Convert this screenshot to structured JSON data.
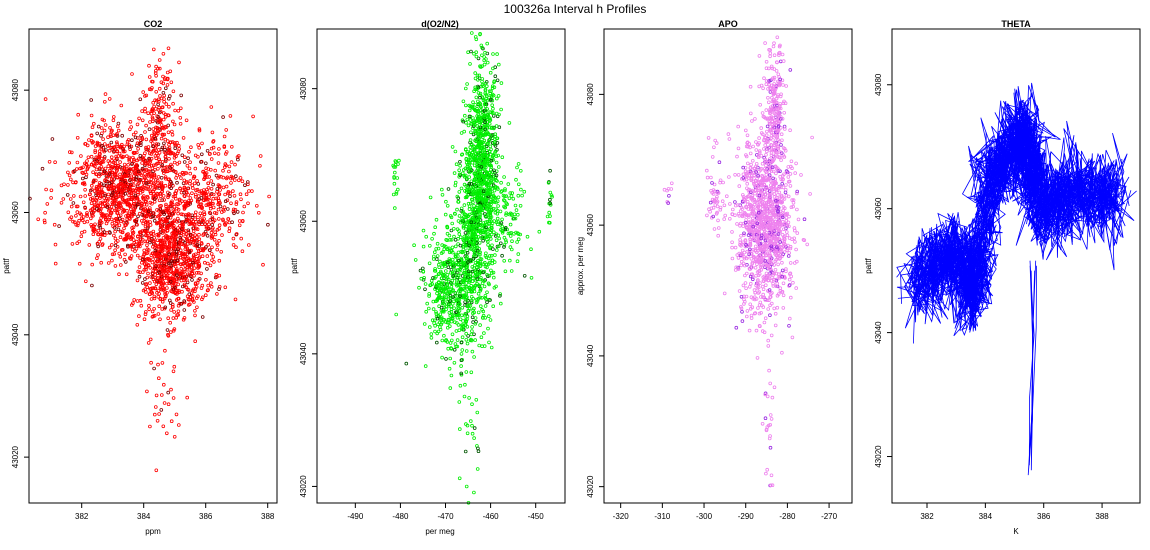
{
  "figure": {
    "title": "100326a   Interval h Profiles"
  },
  "chart_data": [
    {
      "type": "scatter",
      "title": "CO2",
      "xlabel": "ppm",
      "ylabel": "pattf",
      "xlim": [
        380.3,
        388.3
      ],
      "ylim": [
        43012.5,
        43090
      ],
      "xticks": [
        382,
        384,
        386,
        388
      ],
      "yticks": [
        43020,
        43040,
        43060,
        43080
      ],
      "series": [
        {
          "color": "#ff0000",
          "secondary_color": "#7a0000",
          "marker": "open-circle",
          "clusters": [
            {
              "cx": 383.2,
              "cy": 43064,
              "sx": 0.75,
              "sy": 5.5,
              "n": 900
            },
            {
              "cx": 384.9,
              "cy": 43052,
              "sx": 0.55,
              "sy": 4.5,
              "n": 750
            },
            {
              "cx": 384.5,
              "cy": 43072,
              "sx": 0.3,
              "sy": 7.5,
              "n": 260
            },
            {
              "cx": 385.9,
              "cy": 43062,
              "sx": 0.75,
              "sy": 5.5,
              "n": 420
            },
            {
              "cx": 384.1,
              "cy": 43060,
              "sx": 1.6,
              "sy": 4.5,
              "n": 220
            },
            {
              "cx": 384.6,
              "cy": 43030,
              "sx": 0.35,
              "sy": 8.0,
              "n": 40
            }
          ]
        }
      ],
      "panel_key": "co2"
    },
    {
      "type": "scatter",
      "title": "d(O2/N2)",
      "xlabel": "per meg",
      "ylabel": "pattf",
      "xlim": [
        -498.5,
        -443.5
      ],
      "ylim": [
        43017.5,
        43089
      ],
      "xticks": [
        -490,
        -480,
        -470,
        -460,
        -450
      ],
      "yticks": [
        43020,
        43040,
        43060,
        43080
      ],
      "series": [
        {
          "color": "#00ee00",
          "secondary_color": "#005500",
          "marker": "open-circle",
          "clusters": [
            {
              "cx": -462.5,
              "cy": 43064,
              "sx": 2.2,
              "sy": 6.5,
              "n": 900
            },
            {
              "cx": -467.5,
              "cy": 43050,
              "sx": 3.5,
              "sy": 5.0,
              "n": 650
            },
            {
              "cx": -461.5,
              "cy": 43076,
              "sx": 1.5,
              "sy": 6.5,
              "n": 250
            },
            {
              "cx": -464.5,
              "cy": 43028,
              "sx": 1.3,
              "sy": 6.0,
              "n": 30
            },
            {
              "cx": -455.5,
              "cy": 43060,
              "sx": 2.5,
              "sy": 3.5,
              "n": 90
            },
            {
              "cx": -481.0,
              "cy": 43066,
              "sx": 0.3,
              "sy": 2.5,
              "n": 18
            },
            {
              "cx": -447.0,
              "cy": 43062,
              "sx": 0.3,
              "sy": 2.5,
              "n": 15
            }
          ]
        }
      ],
      "panel_key": "o2n2"
    },
    {
      "type": "scatter",
      "title": "APO",
      "xlabel": "",
      "ylabel": "approx. per meg",
      "xlim": [
        -324,
        -264.5
      ],
      "ylim": [
        43017.5,
        43090
      ],
      "xticks": [
        -320,
        -310,
        -300,
        -290,
        -280,
        -270
      ],
      "yticks": [
        43020,
        43040,
        43060,
        43080
      ],
      "series": [
        {
          "color": "#ee82ee",
          "secondary_color": "#9a2be2",
          "marker": "open-circle",
          "clusters": [
            {
              "cx": -285.5,
              "cy": 43060,
              "sx": 3.3,
              "sy": 6.5,
              "n": 1200
            },
            {
              "cx": -283.0,
              "cy": 43077,
              "sx": 1.3,
              "sy": 5.5,
              "n": 240
            },
            {
              "cx": -284.5,
              "cy": 43028,
              "sx": 0.8,
              "sy": 6.0,
              "n": 30
            },
            {
              "cx": -297.5,
              "cy": 43065,
              "sx": 1.0,
              "sy": 3.5,
              "n": 50
            },
            {
              "cx": -308.5,
              "cy": 43066,
              "sx": 0.5,
              "sy": 1.5,
              "n": 8
            }
          ]
        }
      ],
      "panel_key": "apo"
    },
    {
      "type": "line",
      "title": "THETA",
      "xlabel": "K",
      "ylabel": "pattf",
      "xlim": [
        380.8,
        389.3
      ],
      "ylim": [
        43012.5,
        43089
      ],
      "xticks": [
        382,
        384,
        386,
        388
      ],
      "yticks": [
        43020,
        43040,
        43060,
        43080
      ],
      "series": [
        {
          "color": "#0000ff",
          "trace_count": 18,
          "profile": [
            [
              381.6,
              43048
            ],
            [
              382.4,
              43051
            ],
            [
              383.0,
              43053
            ],
            [
              383.5,
              43046
            ],
            [
              383.8,
              43052
            ],
            [
              384.2,
              43066
            ],
            [
              384.8,
              43068
            ],
            [
              385.3,
              43073
            ],
            [
              385.6,
              43066
            ],
            [
              386.0,
              43060
            ],
            [
              386.8,
              43062
            ],
            [
              387.6,
              43063
            ],
            [
              388.6,
              43062
            ]
          ],
          "spike": [
            [
              385.55,
              43050
            ],
            [
              385.6,
              43038
            ],
            [
              385.55,
              43028
            ],
            [
              385.5,
              43017
            ],
            [
              385.58,
              43026
            ],
            [
              385.65,
              43040
            ],
            [
              385.7,
              43050
            ]
          ]
        }
      ],
      "panel_key": "theta"
    }
  ]
}
